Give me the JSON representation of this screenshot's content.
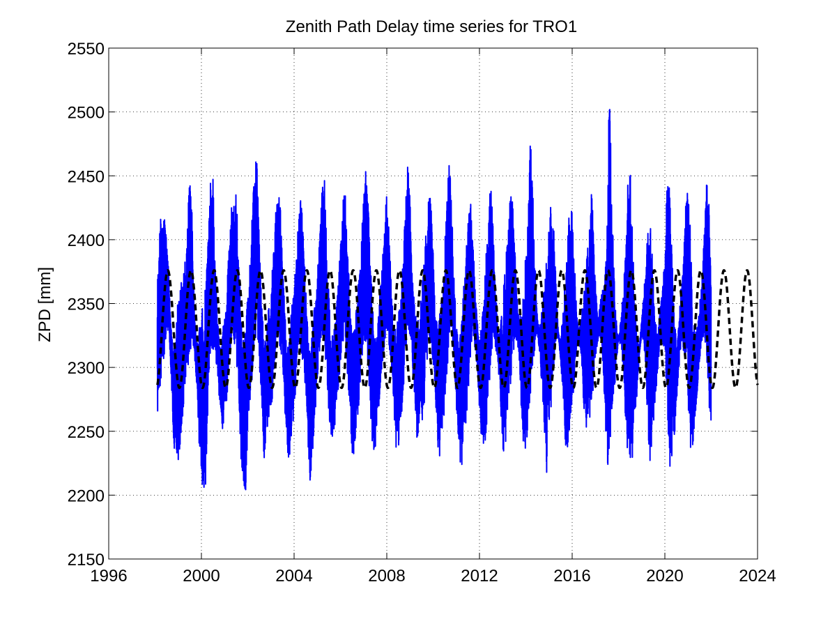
{
  "chart_data": {
    "type": "line",
    "title": "Zenith Path Delay time series for TRO1",
    "xlabel": "",
    "ylabel": "ZPD [mm]",
    "xlim": [
      1996,
      2024
    ],
    "ylim": [
      2150,
      2550
    ],
    "xticks": [
      1996,
      2000,
      2004,
      2008,
      2012,
      2016,
      2020,
      2024
    ],
    "yticks": [
      2150,
      2200,
      2250,
      2300,
      2350,
      2400,
      2450,
      2500,
      2550
    ],
    "x_tick_labels": [
      "1996",
      "2000",
      "2004",
      "2008",
      "2012",
      "2016",
      "2020",
      "2024"
    ],
    "y_tick_labels": [
      "2150",
      "2200",
      "2250",
      "2300",
      "2350",
      "2400",
      "2450",
      "2500",
      "2550"
    ],
    "grid": true,
    "legend": "none",
    "series": [
      {
        "style": "solid",
        "color": "#0000ff",
        "description_values": "observed ZPD, seasonal cycle with daily scatter",
        "x": [
          1998.1,
          1998.2,
          1998.3,
          1998.4,
          1998.5,
          1998.6,
          1998.7,
          1998.8,
          1998.9,
          1999.0,
          1999.1,
          1999.2,
          1999.3,
          1999.4,
          1999.5,
          1999.6,
          1999.7,
          1999.8,
          1999.9,
          2000.0,
          2000.1,
          2000.2,
          2000.3,
          2000.4,
          2000.5,
          2000.6,
          2000.7,
          2000.8,
          2000.9,
          2001.0,
          2001.1,
          2001.2,
          2001.3,
          2001.4,
          2001.5,
          2001.6,
          2001.7,
          2001.8,
          2001.9,
          2002.0,
          2002.1,
          2002.2,
          2002.3,
          2002.4,
          2002.5,
          2002.6,
          2002.7,
          2002.8,
          2002.9,
          2003.0,
          2003.1,
          2003.2,
          2003.3,
          2003.4,
          2003.5,
          2003.6,
          2003.7,
          2003.8,
          2003.9,
          2004.0,
          2004.1,
          2004.2,
          2004.3,
          2004.4,
          2004.5,
          2004.6,
          2004.7,
          2004.8,
          2004.9,
          2005.0,
          2005.1,
          2005.2,
          2005.3,
          2005.4,
          2005.5,
          2005.6,
          2005.7,
          2005.8,
          2005.9,
          2006.0,
          2006.1,
          2006.2,
          2006.3,
          2006.4,
          2006.5,
          2006.6,
          2006.7,
          2006.8,
          2006.9,
          2007.0,
          2007.1,
          2007.2,
          2007.3,
          2007.4,
          2007.5,
          2007.6,
          2007.7,
          2007.8,
          2007.9,
          2008.0,
          2008.1,
          2008.2,
          2008.3,
          2008.4,
          2008.5,
          2008.6,
          2008.7,
          2008.8,
          2008.9,
          2009.0,
          2009.1,
          2009.2,
          2009.3,
          2009.4,
          2009.5,
          2009.6,
          2009.7,
          2009.8,
          2009.9,
          2010.0,
          2010.1,
          2010.2,
          2010.3,
          2010.4,
          2010.5,
          2010.6,
          2010.7,
          2010.8,
          2010.9,
          2011.0,
          2011.1,
          2011.2,
          2011.3,
          2011.4,
          2011.5,
          2011.6,
          2011.7,
          2011.8,
          2011.9,
          2012.0,
          2012.1,
          2012.2,
          2012.3,
          2012.4,
          2012.5,
          2012.6,
          2012.7,
          2012.8,
          2012.9,
          2013.0,
          2013.1,
          2013.2,
          2013.3,
          2013.4,
          2013.5,
          2013.6,
          2013.7,
          2013.8,
          2013.9,
          2014.0,
          2014.1,
          2014.2,
          2014.3,
          2014.4,
          2014.5,
          2014.6,
          2014.7,
          2014.8,
          2014.9,
          2015.0,
          2015.1,
          2015.2,
          2015.3,
          2015.4,
          2015.5,
          2015.6,
          2015.7,
          2015.8,
          2015.9,
          2016.0,
          2016.1,
          2016.2,
          2016.3,
          2016.4,
          2016.5,
          2016.6,
          2016.7,
          2016.8,
          2016.9,
          2017.0,
          2017.1,
          2017.2,
          2017.3,
          2017.4,
          2017.5,
          2017.6,
          2017.7,
          2017.8,
          2017.9,
          2018.0,
          2018.1,
          2018.2,
          2018.3,
          2018.4,
          2018.5,
          2018.6,
          2018.7,
          2018.8,
          2018.9,
          2019.0,
          2019.1,
          2019.2,
          2019.3,
          2019.4,
          2019.5,
          2019.6,
          2019.7,
          2019.8,
          2019.9,
          2020.0,
          2020.1,
          2020.2,
          2020.3,
          2020.4,
          2020.5,
          2020.6,
          2020.7,
          2020.8,
          2020.9,
          2021.0,
          2021.1,
          2021.2,
          2021.3,
          2021.4,
          2021.5,
          2021.6,
          2021.7,
          2021.8,
          2021.9,
          2022.0,
          2022.1,
          2022.2,
          2022.3,
          2022.4,
          2022.5,
          2022.6,
          2022.7,
          2022.8,
          2022.9,
          2023.0,
          2023.1,
          2023.2,
          2023.3,
          2023.4,
          2023.5,
          2023.6,
          2023.7,
          2023.8,
          2023.9,
          2024.0
        ],
        "ymin": [
          2262,
          2272,
          2300,
          2310,
          2330,
          2320,
          2290,
          2236,
          2236,
          2220,
          2242,
          2262,
          2290,
          2300,
          2305,
          2320,
          2310,
          2282,
          2240,
          2215,
          2196,
          2210,
          2278,
          2310,
          2300,
          2308,
          2296,
          2266,
          2248,
          2258,
          2272,
          2300,
          2324,
          2318,
          2304,
          2270,
          2224,
          2210,
          2198,
          2250,
          2270,
          2288,
          2324,
          2318,
          2302,
          2270,
          2226,
          2246,
          2254,
          2264,
          2282,
          2312,
          2322,
          2314,
          2306,
          2268,
          2232,
          2228,
          2246,
          2262,
          2290,
          2318,
          2312,
          2300,
          2280,
          2240,
          2206,
          2232,
          2260,
          2278,
          2310,
          2326,
          2318,
          2296,
          2264,
          2236,
          2250,
          2258,
          2280,
          2304,
          2322,
          2314,
          2294,
          2268,
          2228,
          2232,
          2254,
          2272,
          2300,
          2316,
          2320,
          2300,
          2262,
          2226,
          2236,
          2260,
          2274,
          2296,
          2318,
          2328,
          2316,
          2296,
          2268,
          2234,
          2234,
          2252,
          2278,
          2306,
          2322,
          2324,
          2300,
          2276,
          2244,
          2252,
          2256,
          2266,
          2296,
          2320,
          2318,
          2300,
          2276,
          2238,
          2226,
          2254,
          2266,
          2294,
          2320,
          2324,
          2308,
          2270,
          2236,
          2216,
          2236,
          2254,
          2274,
          2306,
          2324,
          2314,
          2300,
          2266,
          2240,
          2236,
          2250,
          2278,
          2308,
          2320,
          2314,
          2304,
          2272,
          2236,
          2232,
          2262,
          2280,
          2298,
          2318,
          2322,
          2310,
          2270,
          2228,
          2226,
          2256,
          2276,
          2294,
          2318,
          2326,
          2310,
          2282,
          2236,
          2216,
          2256,
          2270,
          2300,
          2320,
          2324,
          2306,
          2278,
          2236,
          2230,
          2252,
          2268,
          2292,
          2318,
          2320,
          2308,
          2266,
          2250,
          2248,
          2260,
          2280,
          2304,
          2320,
          2326,
          2312,
          2270,
          2220,
          2230,
          2254,
          2276,
          2300,
          2322,
          2316,
          2300,
          2258,
          2232,
          2196,
          2222,
          2262,
          2278,
          2308,
          2324,
          2316,
          2284,
          2226,
          2228,
          2252,
          2276,
          2298,
          2322,
          2320,
          2306,
          2272,
          2220,
          2230,
          2240,
          2268,
          2298,
          2316,
          2310,
          2302,
          2268,
          2226,
          2230,
          2260,
          2280,
          2302,
          2320,
          2322,
          2306,
          2270,
          2232
        ],
        "ymax": [
          2376,
          2418,
          2418,
          2420,
          2402,
          2372,
          2330,
          2310,
          2342,
          2352,
          2366,
          2370,
          2384,
          2410,
          2466,
          2418,
          2342,
          2318,
          2336,
          2342,
          2352,
          2366,
          2402,
          2452,
          2448,
          2378,
          2338,
          2316,
          2330,
          2344,
          2364,
          2400,
          2428,
          2428,
          2438,
          2402,
          2344,
          2320,
          2334,
          2356,
          2386,
          2430,
          2460,
          2462,
          2398,
          2356,
          2318,
          2328,
          2352,
          2364,
          2386,
          2422,
          2452,
          2436,
          2380,
          2346,
          2312,
          2326,
          2348,
          2366,
          2390,
          2418,
          2442,
          2404,
          2362,
          2326,
          2318,
          2338,
          2352,
          2372,
          2404,
          2440,
          2454,
          2400,
          2360,
          2324,
          2330,
          2342,
          2368,
          2396,
          2436,
          2444,
          2402,
          2360,
          2326,
          2334,
          2356,
          2372,
          2404,
          2446,
          2456,
          2428,
          2380,
          2344,
          2326,
          2334,
          2358,
          2384,
          2412,
          2444,
          2410,
          2360,
          2332,
          2330,
          2342,
          2360,
          2384,
          2430,
          2472,
          2438,
          2378,
          2346,
          2334,
          2342,
          2358,
          2384,
          2412,
          2436,
          2440,
          2390,
          2340,
          2334,
          2346,
          2366,
          2396,
          2432,
          2466,
          2426,
          2372,
          2334,
          2326,
          2336,
          2360,
          2384,
          2418,
          2440,
          2410,
          2370,
          2338,
          2320,
          2342,
          2364,
          2392,
          2428,
          2446,
          2412,
          2362,
          2324,
          2332,
          2350,
          2380,
          2416,
          2432,
          2442,
          2408,
          2362,
          2340,
          2342,
          2360,
          2392,
          2430,
          2482,
          2446,
          2380,
          2338,
          2330,
          2350,
          2366,
          2388,
          2420,
          2444,
          2418,
          2366,
          2328,
          2322,
          2346,
          2370,
          2398,
          2430,
          2426,
          2384,
          2340,
          2328,
          2342,
          2356,
          2378,
          2410,
          2444,
          2424,
          2372,
          2336,
          2350,
          2362,
          2372,
          2418,
          2514,
          2456,
          2380,
          2338,
          2322,
          2338,
          2360,
          2392,
          2448,
          2462,
          2416,
          2358,
          2326,
          2318,
          2338,
          2362,
          2394,
          2412,
          2420,
          2376,
          2336,
          2326,
          2350,
          2362,
          2388,
          2446,
          2450,
          2400,
          2350,
          2320,
          2336,
          2364,
          2384,
          2440,
          2448,
          2410,
          2358,
          2326,
          2334,
          2350,
          2372,
          2406,
          2446,
          2432,
          2378,
          2334
        ]
      },
      {
        "style": "dashed",
        "color": "#000000",
        "description_values": "model fit: annual harmonic",
        "mean": 2330,
        "amplitude": 46,
        "period_years": 1,
        "peak_phase": 0.55,
        "x_start": 1998.1,
        "x_end": 2024.0
      }
    ]
  }
}
